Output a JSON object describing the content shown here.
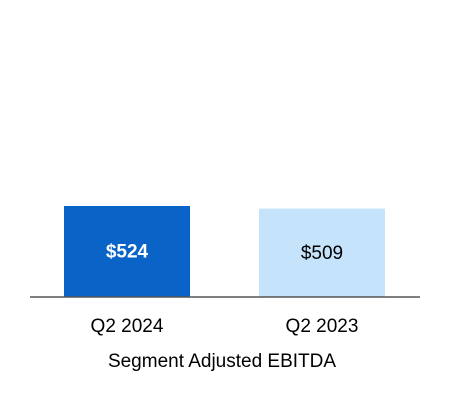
{
  "chart_data": {
    "type": "bar",
    "categories": [
      "Q2 2024",
      "Q2 2023"
    ],
    "values": [
      524,
      509
    ],
    "data_labels": [
      "$524",
      "$509"
    ],
    "bar_colors": [
      "#0a64c8",
      "#c5e3fb"
    ],
    "label_colors": [
      "#ffffff",
      "#000000"
    ],
    "label_bold": [
      true,
      false
    ],
    "title": "",
    "xlabel": "Segment Adjusted EBITDA",
    "ylabel": "",
    "grid": false,
    "legend": "none"
  },
  "colors": {
    "axis": "#555555",
    "background": "#ffffff"
  }
}
